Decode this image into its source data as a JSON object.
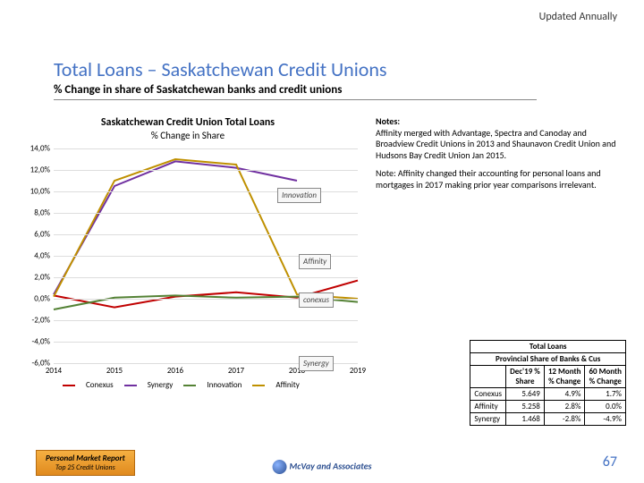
{
  "header": {
    "updated": "Updated Annually"
  },
  "title": {
    "main": "Total Loans – Saskatchewan Credit Unions",
    "sub": "% Change in share of Saskatchewan banks and credit unions"
  },
  "chart": {
    "title": "Saskatchewan Credit Union Total Loans",
    "subtitle": "% Change in Share",
    "ylim": [
      -6,
      14
    ],
    "ytick_step": 2,
    "x_labels": [
      "2014",
      "2015",
      "2016",
      "2017",
      "2018",
      "2019"
    ],
    "series": [
      {
        "name": "Conexus",
        "color": "#c00000",
        "values": [
          0.3,
          -0.8,
          0.2,
          0.6,
          0.1,
          1.7
        ]
      },
      {
        "name": "Synergy",
        "color": "#7030a0",
        "values": [
          0.4,
          10.5,
          12.8,
          12.2,
          11.0,
          null
        ]
      },
      {
        "name": "Innovation",
        "color": "#548235",
        "values": [
          -1.0,
          0.1,
          0.3,
          0.1,
          0.2,
          -0.3
        ]
      },
      {
        "name": "Affinity",
        "color": "#bf9000",
        "values": [
          0.2,
          11.0,
          13.0,
          12.5,
          0.4,
          0.0
        ]
      }
    ],
    "line_width": 2,
    "grid_color": "#dddddd",
    "font_size": 9
  },
  "logos": {
    "innovation": "Innovation",
    "affinity": "Affinity",
    "conexus": "conexus",
    "synergy": "Synergy"
  },
  "notes": {
    "head": "Notes:",
    "p1": "Affinity merged with Advantage, Spectra and Canoday and Broadview Credit Unions in 2013 and Shaunavon Credit Union and Hudsons Bay Credit Union Jan 2015.",
    "p2": "Note:  Affinity changed their accounting for  personal loans and mortgages in 2017 making prior year comparisons irrelevant."
  },
  "table": {
    "title": "Total Loans",
    "subtitle": "Provincial Share of Banks & Cus",
    "cols": [
      "Dec'19  %\nShare",
      "12 Month\n% Change",
      "60 Month\n% Change"
    ],
    "rows": [
      [
        "Conexus",
        "5.649",
        "4.9%",
        "1.7%"
      ],
      [
        "Affinity",
        "5.258",
        "2.8%",
        "0.0%"
      ],
      [
        "Synergy",
        "1.468",
        "-2.8%",
        "-4.9%"
      ]
    ]
  },
  "footer": {
    "report1": "Personal Market Report",
    "report2": "Top 25 Credit Unions",
    "brand": "McVay and Associates",
    "page": "67"
  }
}
